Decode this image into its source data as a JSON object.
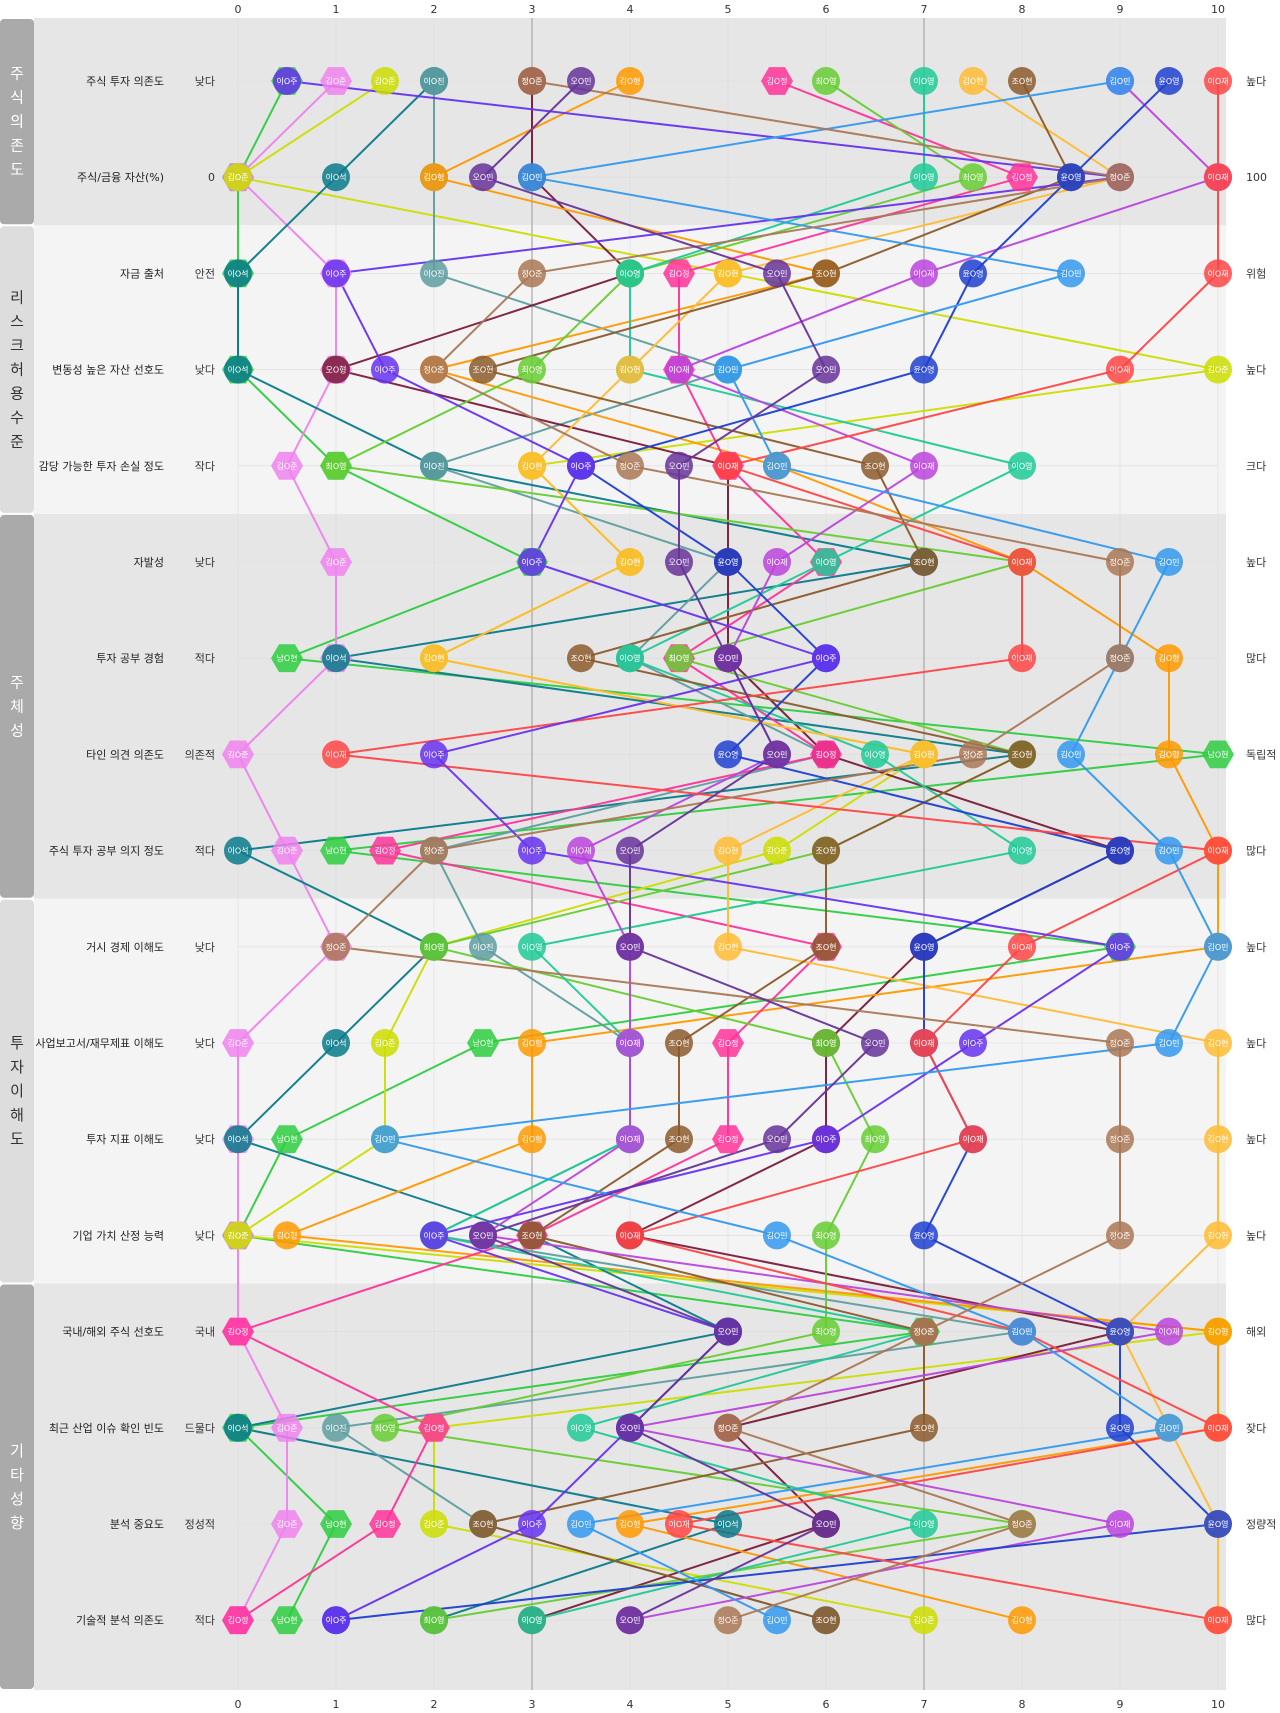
{
  "chart_data": {
    "type": "parallel-coordinates",
    "x_axis": {
      "min": 0,
      "max": 10,
      "ticks": [
        0,
        1,
        2,
        3,
        4,
        5,
        6,
        7,
        8,
        9,
        10
      ]
    },
    "reference_lines": [
      3,
      7
    ],
    "groups": [
      {
        "label": "주식의존도",
        "color": "#aaaaaa",
        "band": "#e6e6e6",
        "rows": 2
      },
      {
        "label": "리스크허용수준",
        "color": "#dddddd",
        "band": "#f4f4f4",
        "rows": 3
      },
      {
        "label": "주체성",
        "color": "#aaaaaa",
        "band": "#e6e6e6",
        "rows": 4
      },
      {
        "label": "투자이해도",
        "color": "#dddddd",
        "band": "#f4f4f4",
        "rows": 4
      },
      {
        "label": "기타성향",
        "color": "#aaaaaa",
        "band": "#e6e6e6",
        "rows": 4
      }
    ],
    "rows": [
      {
        "label": "주식 투자 의존도",
        "low": "낮다",
        "high": "높다"
      },
      {
        "label": "주식/금융 자산(%)",
        "low": "0",
        "high": "100"
      },
      {
        "label": "자금 출처",
        "low": "안전",
        "high": "위험"
      },
      {
        "label": "변동성 높은 자산 선호도",
        "low": "낮다",
        "high": "높다"
      },
      {
        "label": "감당 가능한 투자 손실 정도",
        "low": "작다",
        "high": "크다"
      },
      {
        "label": "자발성",
        "low": "낮다",
        "high": "높다"
      },
      {
        "label": "투자 공부 경험",
        "low": "적다",
        "high": "많다"
      },
      {
        "label": "타인 의견 의존도",
        "low": "의존적",
        "high": "독립적"
      },
      {
        "label": "주식 투자 공부 의지 정도",
        "low": "적다",
        "high": "많다"
      },
      {
        "label": "거시 경제 이해도",
        "low": "낮다",
        "high": "높다"
      },
      {
        "label": "사업보고서/재무제표 이해도",
        "low": "낮다",
        "high": "높다"
      },
      {
        "label": "투자 지표 이해도",
        "low": "낮다",
        "high": "높다"
      },
      {
        "label": "기업 가치 산정 능력",
        "low": "낮다",
        "high": "높다"
      },
      {
        "label": "국내/해외 주식 선호도",
        "low": "국내",
        "high": "해외"
      },
      {
        "label": "최근 산업 이슈 확인 빈도",
        "low": "드물다",
        "high": "잦다"
      },
      {
        "label": "분석 중요도",
        "low": "정성적",
        "high": "정량적"
      },
      {
        "label": "기술적 분석 의존도",
        "low": "적다",
        "high": "많다"
      }
    ],
    "series": [
      {
        "name": "남O현",
        "color": "#2ecc40",
        "shape": "hexagon",
        "values": [
          0.5,
          0,
          0,
          0,
          1,
          3,
          0.5,
          10,
          1,
          9,
          2.5,
          0.5,
          0,
          7,
          0,
          1,
          0.5
        ]
      },
      {
        "name": "김O준",
        "color": "#ee82ee",
        "shape": "hexagon",
        "values": [
          1,
          0,
          1,
          1,
          0.5,
          1,
          1,
          0,
          0.5,
          1,
          0,
          0,
          0,
          0,
          0.5,
          0.5,
          0
        ]
      },
      {
        "name": "김O준",
        "color": "#ccdd00",
        "shape": "circle",
        "values": [
          1.5,
          0,
          5,
          10,
          3,
          4,
          2,
          7,
          5.5,
          2,
          1.5,
          1.5,
          0,
          10,
          2,
          2,
          7
        ]
      },
      {
        "name": "이O석",
        "color": "#0a7a8a",
        "shape": "circle",
        "values": [
          2,
          1,
          0,
          0,
          2,
          7,
          1,
          8,
          0,
          2,
          1,
          0,
          3,
          5,
          0,
          5,
          2
        ]
      },
      {
        "name": "이O진",
        "color": "#5f9ea0",
        "shape": "circle",
        "values": [
          2,
          2,
          2,
          5,
          2,
          5,
          4,
          6,
          2,
          2.5,
          4,
          4,
          2,
          8,
          1,
          2.5,
          6
        ]
      },
      {
        "name": "오O형",
        "color": "#7a1a3a",
        "shape": "circle",
        "values": [
          3,
          3,
          4,
          1,
          5,
          5,
          5,
          6,
          9,
          7,
          6,
          6,
          4,
          9,
          5,
          6,
          3
        ]
      },
      {
        "name": "김O형",
        "color": "#ff9900",
        "shape": "circle",
        "values": [
          4,
          2,
          6,
          2,
          5.5,
          8,
          9.5,
          9.5,
          10,
          10,
          3,
          3,
          0.5,
          10,
          10,
          4,
          8
        ]
      },
      {
        "name": "김O정",
        "color": "#ff3399",
        "shape": "hexagon",
        "values": [
          5.5,
          8,
          4.5,
          4.5,
          5,
          6,
          4.5,
          6,
          1.5,
          6,
          5,
          5,
          3,
          0,
          2,
          1.5,
          0
        ]
      },
      {
        "name": "최O영",
        "color": "#66cc33",
        "shape": "circle",
        "values": [
          6,
          7.5,
          4,
          3,
          1,
          8,
          4.5,
          8,
          6,
          2,
          6,
          6.5,
          6,
          6,
          1.5,
          8,
          2
        ]
      },
      {
        "name": "이O영",
        "color": "#20c997",
        "shape": "circle",
        "values": [
          7,
          7,
          4,
          4,
          8,
          6,
          4,
          6.5,
          8,
          3,
          4,
          4,
          2,
          7,
          3.5,
          7,
          3
        ]
      },
      {
        "name": "김O현",
        "color": "#ffbb33",
        "shape": "circle",
        "values": [
          7.5,
          9,
          5,
          4,
          3,
          4,
          2,
          7,
          5,
          5,
          10,
          10,
          10,
          9,
          9.5,
          10,
          10
        ]
      },
      {
        "name": "조O현",
        "color": "#8b5a2b",
        "shape": "circle",
        "values": [
          8,
          8.5,
          6,
          2.5,
          6.5,
          7,
          3.5,
          8,
          6,
          6,
          4.5,
          4.5,
          3,
          7,
          7,
          2.5,
          6
        ]
      },
      {
        "name": "이O재",
        "color": "#bb44dd",
        "shape": "circle",
        "values": [
          9,
          10,
          7,
          4.5,
          7,
          5.5,
          5,
          5.5,
          3.5,
          4,
          4,
          4,
          2.5,
          9.5,
          4,
          9,
          4
        ]
      },
      {
        "name": "윤O영",
        "color": "#1f3fd0",
        "shape": "circle",
        "values": [
          9.5,
          8.5,
          7.5,
          7,
          3.5,
          5,
          6,
          5,
          9,
          7,
          7,
          7.5,
          7,
          9,
          9,
          10,
          1
        ]
      },
      {
        "name": "이O재",
        "color": "#ff4444",
        "shape": "circle",
        "values": [
          10,
          10,
          10,
          9,
          5,
          8,
          8,
          1,
          10,
          8,
          7,
          7.5,
          4,
          8,
          10,
          4.5,
          10
        ]
      },
      {
        "name": "이O주",
        "color": "#6633ee",
        "shape": "circle",
        "values": [
          0.5,
          9,
          1,
          1.5,
          3.5,
          3,
          6,
          2,
          3,
          9,
          7.5,
          6,
          2,
          5,
          4,
          3,
          1
        ]
      },
      {
        "name": "김O민",
        "color": "#3399ee",
        "shape": "circle",
        "values": [
          9,
          3,
          8.5,
          5,
          5.5,
          9.5,
          9,
          8.5,
          9.5,
          10,
          9.5,
          1.5,
          5.5,
          8,
          9.5,
          3.5,
          5.5
        ]
      },
      {
        "name": "정O준",
        "color": "#aa7755",
        "shape": "circle",
        "values": [
          3,
          9,
          3,
          2,
          4,
          9,
          9,
          7.5,
          2,
          1,
          9,
          9,
          9,
          7,
          5,
          8,
          5
        ]
      },
      {
        "name": "오O민",
        "color": "#663399",
        "shape": "circle",
        "values": [
          3.5,
          2.5,
          5.5,
          6,
          4.5,
          4.5,
          5,
          5.5,
          4,
          4,
          6.5,
          5.5,
          2.5,
          5,
          4,
          6,
          4
        ]
      }
    ]
  }
}
